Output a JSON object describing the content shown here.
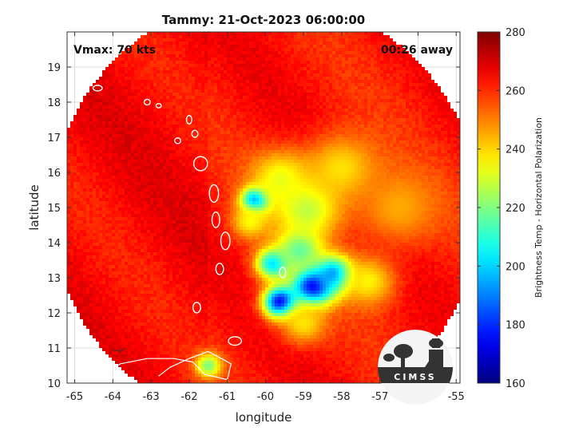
{
  "chart_data": {
    "type": "heatmap",
    "title": "Tammy: 21-Oct-2023 06:00:00",
    "xlabel": "longitude",
    "ylabel": "latitude",
    "xlim": [
      -65.2,
      -54.9
    ],
    "ylim": [
      10,
      20
    ],
    "xticks": [
      -65,
      -64,
      -63,
      -62,
      -61,
      -60,
      -59,
      -58,
      -57,
      -56,
      -55
    ],
    "yticks": [
      10,
      11,
      12,
      13,
      14,
      15,
      16,
      17,
      18,
      19
    ],
    "grid": true,
    "annotations": {
      "vmax": "Vmax: 70 kts",
      "time_offset": "00:26 away"
    },
    "colorbar": {
      "label": "Brightness Temp - Horizontal Polarization",
      "range": [
        160,
        280
      ],
      "ticks": [
        160,
        180,
        200,
        220,
        240,
        260,
        280
      ],
      "colormap": "jet"
    },
    "swath": {
      "center": [
        -60.0,
        14.9
      ],
      "radius_deg": 5.6
    },
    "cold_features": [
      {
        "lon": -60.25,
        "lat": 15.2,
        "value": 165,
        "spread": 0.35
      },
      {
        "lon": -58.75,
        "lat": 12.75,
        "value": 168,
        "spread": 0.55
      },
      {
        "lon": -59.6,
        "lat": 12.3,
        "value": 168,
        "spread": 0.45
      },
      {
        "lon": -58.2,
        "lat": 13.1,
        "value": 185,
        "spread": 0.5
      },
      {
        "lon": -59.8,
        "lat": 13.4,
        "value": 200,
        "spread": 0.45
      },
      {
        "lon": -59.1,
        "lat": 13.8,
        "value": 215,
        "spread": 0.6
      },
      {
        "lon": -58.9,
        "lat": 15.0,
        "value": 225,
        "spread": 0.9
      },
      {
        "lon": -59.6,
        "lat": 15.8,
        "value": 232,
        "spread": 0.8
      },
      {
        "lon": -58.0,
        "lat": 16.1,
        "value": 238,
        "spread": 1.0
      },
      {
        "lon": -60.4,
        "lat": 14.6,
        "value": 235,
        "spread": 0.5
      },
      {
        "lon": -57.3,
        "lat": 12.9,
        "value": 236,
        "spread": 0.7
      },
      {
        "lon": -61.5,
        "lat": 10.5,
        "value": 220,
        "spread": 0.35
      },
      {
        "lon": -59.0,
        "lat": 11.7,
        "value": 238,
        "spread": 0.6
      },
      {
        "lon": -56.5,
        "lat": 15.0,
        "value": 245,
        "spread": 1.1
      }
    ],
    "logo_text": "CIMSS"
  }
}
